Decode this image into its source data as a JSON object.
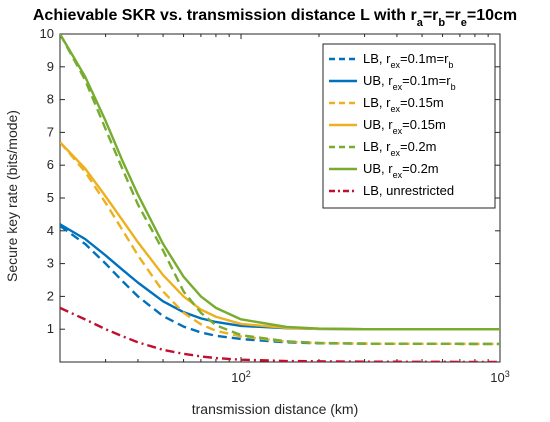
{
  "chart_data": {
    "type": "line",
    "title": {
      "main": "Achievable SKR vs. transmission distance L with r",
      "parts": [
        {
          "text": "Achievable SKR vs. transmission distance L with r",
          "sub": false
        },
        {
          "text": "a",
          "sub": true
        },
        {
          "text": "=r",
          "sub": false
        },
        {
          "text": "b",
          "sub": true
        },
        {
          "text": "=r",
          "sub": false
        },
        {
          "text": "e",
          "sub": true
        },
        {
          "text": "=10cm",
          "sub": false
        }
      ]
    },
    "xlabel": "transmission distance (km)",
    "ylabel": "Secure key rate (bits/mode)",
    "xscale": "log",
    "xlim": [
      20,
      1000
    ],
    "ylim": [
      0,
      10
    ],
    "xticks": [
      {
        "value": 100,
        "base": "10",
        "exp": "2"
      },
      {
        "value": 1000,
        "base": "10",
        "exp": "3"
      }
    ],
    "yticks": [
      {
        "value": 1,
        "label": "1"
      },
      {
        "value": 2,
        "label": "2"
      },
      {
        "value": 3,
        "label": "3"
      },
      {
        "value": 4,
        "label": "4"
      },
      {
        "value": 5,
        "label": "5"
      },
      {
        "value": 6,
        "label": "6"
      },
      {
        "value": 7,
        "label": "7"
      },
      {
        "value": 8,
        "label": "8"
      },
      {
        "value": 9,
        "label": "9"
      },
      {
        "value": 10,
        "label": "10"
      }
    ],
    "grid": false,
    "legend_position": "top-right",
    "series": [
      {
        "name": "LB, r_ex=0.1m=r_b",
        "legend": [
          {
            "t": "LB, r",
            "s": false
          },
          {
            "t": "ex",
            "s": true
          },
          {
            "t": "=0.1m=r",
            "s": false
          },
          {
            "t": "b",
            "s": true
          }
        ],
        "color": "#0072BD",
        "style": "dashed",
        "points": [
          [
            20,
            4.15
          ],
          [
            25,
            3.6
          ],
          [
            30,
            3.0
          ],
          [
            35,
            2.45
          ],
          [
            40,
            2.0
          ],
          [
            50,
            1.4
          ],
          [
            60,
            1.08
          ],
          [
            70,
            0.9
          ],
          [
            80,
            0.8
          ],
          [
            100,
            0.7
          ],
          [
            150,
            0.6
          ],
          [
            200,
            0.57
          ],
          [
            300,
            0.56
          ],
          [
            1000,
            0.55
          ]
        ]
      },
      {
        "name": "UB, r_ex=0.1m=r_b",
        "legend": [
          {
            "t": "UB, r",
            "s": false
          },
          {
            "t": "ex",
            "s": true
          },
          {
            "t": "=0.1m=r",
            "s": false
          },
          {
            "t": "b",
            "s": true
          }
        ],
        "color": "#0072BD",
        "style": "solid",
        "points": [
          [
            20,
            4.2
          ],
          [
            25,
            3.75
          ],
          [
            30,
            3.25
          ],
          [
            35,
            2.8
          ],
          [
            40,
            2.42
          ],
          [
            50,
            1.85
          ],
          [
            60,
            1.52
          ],
          [
            70,
            1.33
          ],
          [
            80,
            1.22
          ],
          [
            100,
            1.1
          ],
          [
            150,
            1.03
          ],
          [
            200,
            1.01
          ],
          [
            300,
            1.0
          ],
          [
            1000,
            1.0
          ]
        ]
      },
      {
        "name": "LB, r_ex=0.15m",
        "legend": [
          {
            "t": "LB, r",
            "s": false
          },
          {
            "t": "ex",
            "s": true
          },
          {
            "t": "=0.15m",
            "s": false
          }
        ],
        "color": "#EDB120",
        "style": "dashed",
        "points": [
          [
            20,
            6.7
          ],
          [
            25,
            5.8
          ],
          [
            30,
            4.85
          ],
          [
            35,
            4.0
          ],
          [
            40,
            3.25
          ],
          [
            50,
            2.15
          ],
          [
            60,
            1.5
          ],
          [
            70,
            1.15
          ],
          [
            80,
            0.95
          ],
          [
            100,
            0.78
          ],
          [
            150,
            0.62
          ],
          [
            200,
            0.58
          ],
          [
            300,
            0.56
          ],
          [
            1000,
            0.55
          ]
        ]
      },
      {
        "name": "UB, r_ex=0.15m",
        "legend": [
          {
            "t": "UB, r",
            "s": false
          },
          {
            "t": "ex",
            "s": true
          },
          {
            "t": "=0.15m",
            "s": false
          }
        ],
        "color": "#EDB120",
        "style": "solid",
        "points": [
          [
            20,
            6.7
          ],
          [
            25,
            5.9
          ],
          [
            30,
            5.05
          ],
          [
            35,
            4.3
          ],
          [
            40,
            3.65
          ],
          [
            50,
            2.65
          ],
          [
            60,
            2.0
          ],
          [
            70,
            1.6
          ],
          [
            80,
            1.38
          ],
          [
            100,
            1.16
          ],
          [
            150,
            1.04
          ],
          [
            200,
            1.01
          ],
          [
            300,
            1.0
          ],
          [
            1000,
            1.0
          ]
        ]
      },
      {
        "name": "LB, r_ex=0.2m",
        "legend": [
          {
            "t": "LB, r",
            "s": false
          },
          {
            "t": "ex",
            "s": true
          },
          {
            "t": "=0.2m",
            "s": false
          }
        ],
        "color": "#77AC30",
        "style": "dashed",
        "points": [
          [
            20,
            10.0
          ],
          [
            25,
            8.6
          ],
          [
            30,
            7.1
          ],
          [
            35,
            5.85
          ],
          [
            40,
            4.8
          ],
          [
            50,
            3.4
          ],
          [
            55,
            2.75
          ],
          [
            60,
            2.15
          ],
          [
            70,
            1.5
          ],
          [
            80,
            1.12
          ],
          [
            100,
            0.82
          ],
          [
            150,
            0.63
          ],
          [
            200,
            0.58
          ],
          [
            300,
            0.56
          ],
          [
            1000,
            0.55
          ]
        ]
      },
      {
        "name": "UB, r_ex=0.2m",
        "legend": [
          {
            "t": "UB, r",
            "s": false
          },
          {
            "t": "ex",
            "s": true
          },
          {
            "t": "=0.2m",
            "s": false
          }
        ],
        "color": "#77AC30",
        "style": "solid",
        "points": [
          [
            20,
            10.0
          ],
          [
            25,
            8.7
          ],
          [
            30,
            7.35
          ],
          [
            35,
            6.1
          ],
          [
            40,
            5.1
          ],
          [
            50,
            3.6
          ],
          [
            60,
            2.6
          ],
          [
            70,
            2.0
          ],
          [
            80,
            1.65
          ],
          [
            100,
            1.3
          ],
          [
            150,
            1.07
          ],
          [
            200,
            1.02
          ],
          [
            300,
            1.0
          ],
          [
            1000,
            1.0
          ]
        ]
      },
      {
        "name": "LB, unrestricted",
        "legend": [
          {
            "t": "LB, unrestricted",
            "s": false
          }
        ],
        "color": "#C0102F",
        "style": "dashdot",
        "points": [
          [
            20,
            1.65
          ],
          [
            25,
            1.3
          ],
          [
            30,
            1.0
          ],
          [
            35,
            0.78
          ],
          [
            40,
            0.6
          ],
          [
            50,
            0.37
          ],
          [
            60,
            0.25
          ],
          [
            70,
            0.17
          ],
          [
            80,
            0.12
          ],
          [
            100,
            0.07
          ],
          [
            150,
            0.03
          ],
          [
            200,
            0.02
          ],
          [
            300,
            0.01
          ],
          [
            1000,
            0.0
          ]
        ]
      }
    ]
  }
}
